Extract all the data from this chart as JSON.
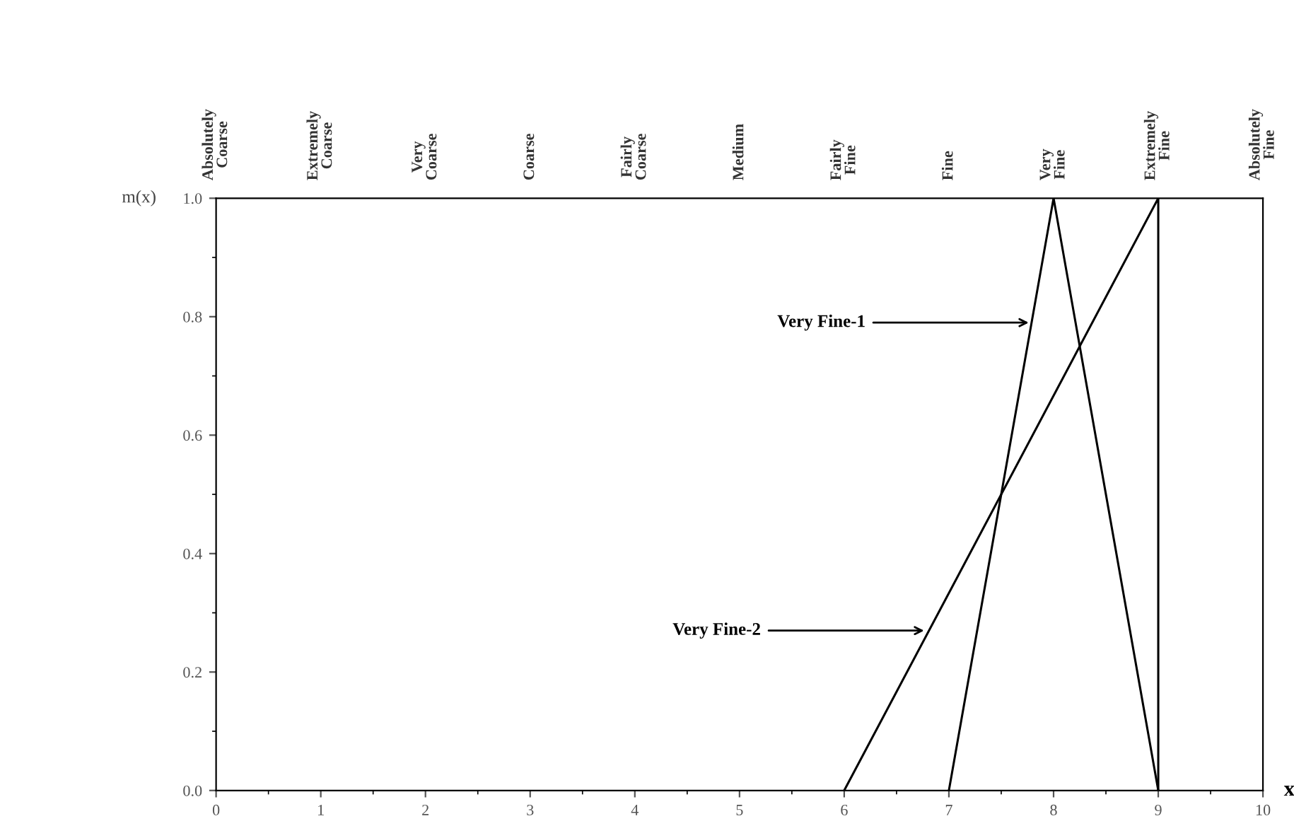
{
  "chart_data": {
    "type": "line",
    "xlabel": "x",
    "ylabel": "m(x)",
    "xlim": [
      0,
      10
    ],
    "xticks": [
      0,
      1,
      2,
      3,
      4,
      5,
      6,
      7,
      8,
      9,
      10
    ],
    "ylim": [
      0,
      1
    ],
    "yticks": [
      {
        "value": 0,
        "label": "0.0"
      },
      {
        "value": 0.2,
        "label": "0.2"
      },
      {
        "value": 0.4,
        "label": "0.4"
      },
      {
        "value": 0.6,
        "label": "0.6"
      },
      {
        "value": 0.8,
        "label": "0.8"
      },
      {
        "value": 1,
        "label": "1.0"
      }
    ],
    "series": [
      {
        "color": "#000000",
        "x": [
          7,
          8,
          9
        ],
        "values": [
          0,
          1,
          0
        ]
      },
      {
        "color": "#000000",
        "x": [
          6,
          9,
          9
        ],
        "values": [
          0,
          1,
          0
        ]
      }
    ],
    "annotations": [
      {
        "text": "Very Fine-1",
        "x": 7.8,
        "y": 0.79
      },
      {
        "text": "Very Fine-2",
        "x": 6.8,
        "y": 0.27
      },
      "Absolutely\nCoarse",
      "Extremely\nCoarse",
      "Very\nCoarse",
      "Coarse",
      "Fairly\nCoarse",
      "Medium",
      "Fairly\nFine",
      "Fine",
      "Very\nFine",
      "Extremely\nFine",
      "Absolutely\nFine"
    ],
    "grid": false,
    "legend": false,
    "marker": "none",
    "line_style": "solid"
  }
}
